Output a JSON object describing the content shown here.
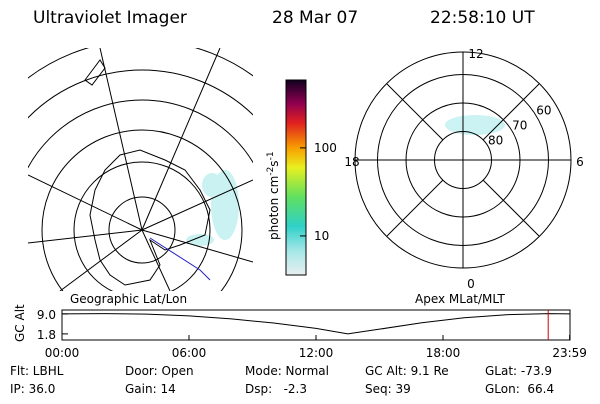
{
  "header": {
    "instrument": "Ultraviolet Imager",
    "date": "28 Mar 07",
    "time": "22:58:10 UT"
  },
  "map": {
    "label": "Geographic Lat/Lon"
  },
  "colorbar": {
    "label": [
      "photon cm",
      "-2",
      "s",
      "-1"
    ],
    "log_scale": true,
    "lim": [
      3.6,
      590
    ],
    "ticks": [
      10,
      100
    ]
  },
  "polar": {
    "label": "Apex MLat/MLT",
    "mlt_labels": {
      "top": "12",
      "left": "18",
      "right": "6",
      "bottom": "0"
    },
    "lat_circles": [
      80,
      70,
      60
    ]
  },
  "altitude_plot": {
    "ylabel": "GC Alt",
    "ylim": [
      -0.4,
      10.4
    ],
    "yticks": [
      {
        "value": 9.0,
        "label": "9.0"
      },
      {
        "value": 1.8,
        "label": "1.8"
      }
    ],
    "xlim": [
      0,
      24
    ],
    "xticks": [
      {
        "value": 0,
        "label": "00:00"
      },
      {
        "value": 6,
        "label": "06:00"
      },
      {
        "value": 12,
        "label": "12:00"
      },
      {
        "value": 18,
        "label": "18:00"
      },
      {
        "value": 23.983,
        "label": "23:59"
      }
    ],
    "x": [
      0,
      2,
      4,
      6,
      8,
      10,
      12,
      13.5,
      15,
      17,
      19,
      21,
      23,
      24
    ],
    "values": [
      9.0,
      9.1,
      8.9,
      8.3,
      7.2,
      5.7,
      3.8,
      1.8,
      3.5,
      5.8,
      7.6,
      8.7,
      9.1,
      9.0
    ],
    "current_time": 22.97,
    "current_color": "#d00000"
  },
  "footer": {
    "rows": [
      [
        "Flt: LBHL",
        "Door: Open",
        "Mode: Normal",
        "GC Alt: 9.1 Re",
        "GLat: -73.9"
      ],
      [
        "IP: 36.0",
        "Gain: 14",
        "Dsp:   -2.3",
        "Seq: 39",
        "GLon:  66.4"
      ]
    ]
  }
}
